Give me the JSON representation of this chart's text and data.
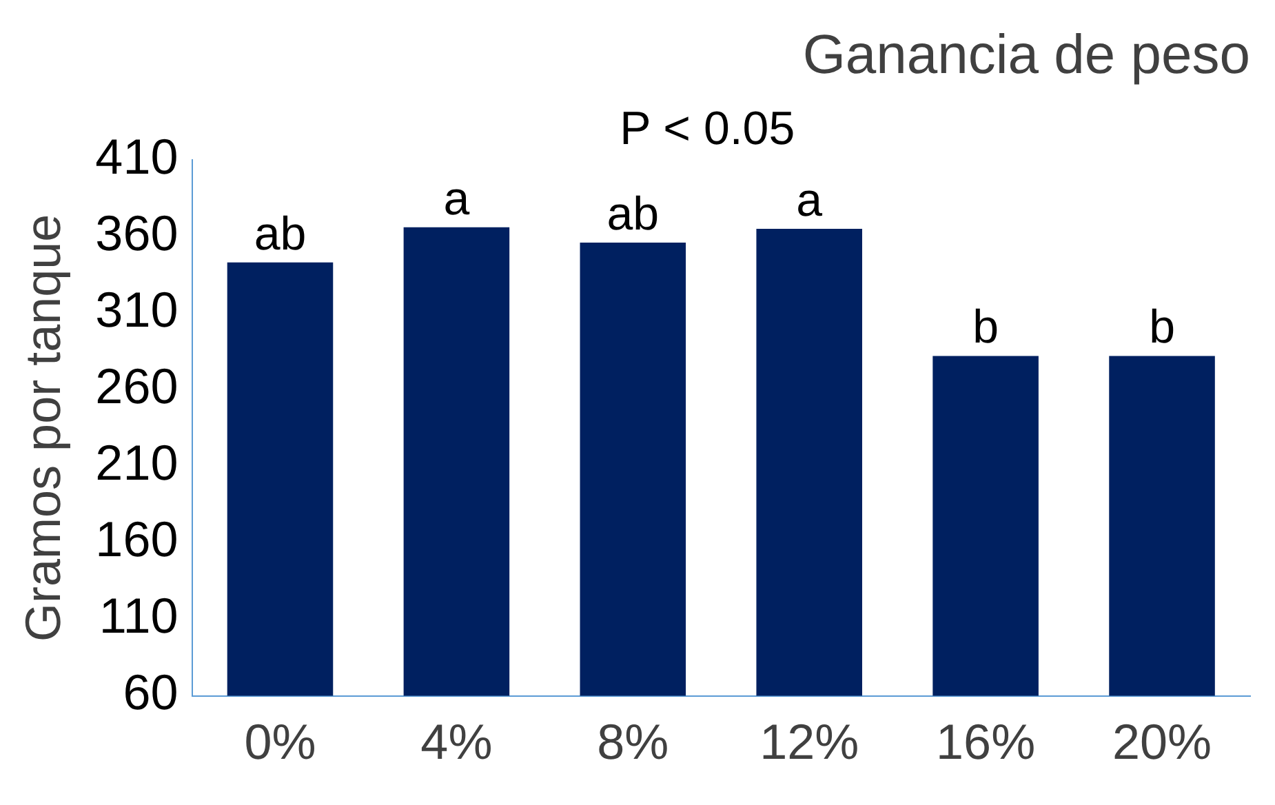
{
  "chart_data": {
    "type": "bar",
    "title": "Ganancia de peso",
    "ylabel": "Gramos por tanque",
    "categories": [
      "0%",
      "4%",
      "8%",
      "12%",
      "16%",
      "20%"
    ],
    "values": [
      343,
      366,
      356,
      365,
      282,
      282
    ],
    "color": "#002060",
    "ylim": [
      60,
      410
    ],
    "yticks": [
      60,
      110,
      160,
      210,
      260,
      310,
      360,
      410
    ],
    "grid": false,
    "legend": false,
    "annotations": [
      "P < 0.05",
      {
        "text": "ab",
        "x": "0%",
        "y": 343
      },
      {
        "text": "a",
        "x": "4%",
        "y": 366
      },
      {
        "text": "ab",
        "x": "8%",
        "y": 356
      },
      {
        "text": "a",
        "x": "12%",
        "y": 365
      },
      {
        "text": "b",
        "x": "16%",
        "y": 282
      },
      {
        "text": "b",
        "x": "20%",
        "y": 282
      }
    ]
  }
}
